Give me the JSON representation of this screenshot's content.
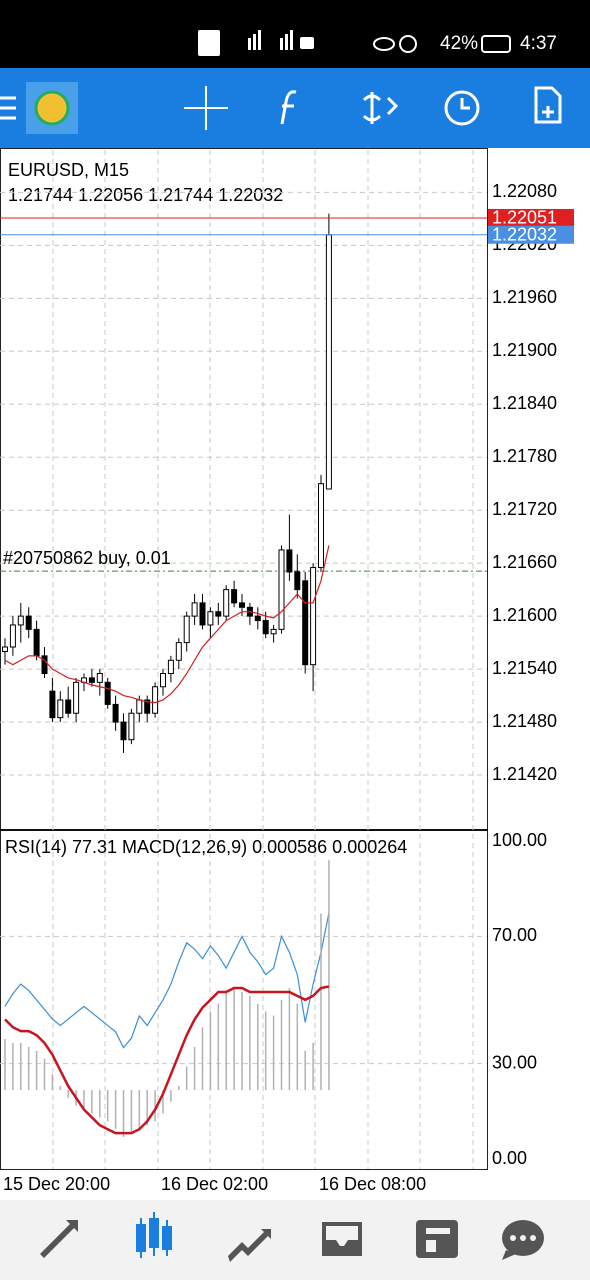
{
  "status_bar": {
    "battery": "42%",
    "time": "4:37"
  },
  "chart_data": [
    {
      "type": "candlestick",
      "title": "EURUSD, M15",
      "subtitle": "1.21744 1.22056 1.21744 1.22032",
      "categories": [
        "15 Dec 20:00",
        null,
        null,
        null,
        null,
        null,
        null,
        null,
        null,
        null,
        null,
        null,
        null,
        null,
        null,
        null,
        null,
        null,
        null,
        null,
        "16 Dec 02:00",
        null,
        null,
        null,
        null,
        null,
        null,
        null,
        null,
        null,
        null,
        null,
        null,
        null,
        null,
        null,
        null,
        null,
        null,
        null,
        "16 Dec 08:00",
        null
      ],
      "open": [
        1.2156,
        1.21565,
        1.2159,
        1.216,
        1.21585,
        1.21555,
        1.21515,
        1.21485,
        1.21505,
        1.2149,
        1.21525,
        1.2153,
        1.21525,
        1.21525,
        1.215,
        1.2148,
        1.2146,
        1.2149,
        1.21505,
        1.2149,
        1.2152,
        1.21535,
        1.2155,
        1.2157,
        1.216,
        1.21615,
        1.2159,
        1.21605,
        1.216,
        1.2163,
        1.21615,
        1.2161,
        1.216,
        1.21595,
        1.2158,
        1.21585,
        1.21675,
        1.2165,
        1.2164,
        1.21545,
        1.21655,
        1.21744
      ],
      "high": [
        1.21575,
        1.216,
        1.21615,
        1.2161,
        1.21595,
        1.21565,
        1.2153,
        1.21515,
        1.2152,
        1.2153,
        1.21535,
        1.2154,
        1.2154,
        1.2153,
        1.2151,
        1.2149,
        1.21495,
        1.2151,
        1.2151,
        1.21525,
        1.2154,
        1.21555,
        1.21575,
        1.21605,
        1.21625,
        1.21625,
        1.2161,
        1.21615,
        1.21635,
        1.2164,
        1.21625,
        1.21615,
        1.2161,
        1.21605,
        1.2159,
        1.2168,
        1.21715,
        1.2167,
        1.2165,
        1.2166,
        1.2176,
        1.22056
      ],
      "low": [
        1.21545,
        1.21555,
        1.2157,
        1.21575,
        1.2155,
        1.2153,
        1.2148,
        1.2148,
        1.21485,
        1.2148,
        1.21515,
        1.2152,
        1.2151,
        1.21495,
        1.2147,
        1.21445,
        1.21455,
        1.2148,
        1.2148,
        1.21485,
        1.2151,
        1.21525,
        1.2154,
        1.2156,
        1.2159,
        1.21585,
        1.21575,
        1.2159,
        1.21595,
        1.2161,
        1.216,
        1.2159,
        1.21585,
        1.21575,
        1.2157,
        1.2158,
        1.2164,
        1.2162,
        1.21535,
        1.21515,
        1.2165,
        1.21744
      ],
      "close": [
        1.21565,
        1.2159,
        1.216,
        1.21585,
        1.21555,
        1.21535,
        1.21485,
        1.21505,
        1.2149,
        1.21525,
        1.2153,
        1.21525,
        1.21535,
        1.215,
        1.2148,
        1.2146,
        1.2149,
        1.21505,
        1.2149,
        1.2152,
        1.21535,
        1.2155,
        1.2157,
        1.216,
        1.21615,
        1.2159,
        1.21605,
        1.216,
        1.2163,
        1.21615,
        1.2161,
        1.216,
        1.21595,
        1.2158,
        1.21585,
        1.21675,
        1.2165,
        1.2163,
        1.21545,
        1.21655,
        1.2175,
        1.22032
      ],
      "ma": {
        "color": "#d42020",
        "values": [
          1.2155,
          1.21545,
          1.2155,
          1.21555,
          1.21555,
          1.2155,
          1.2154,
          1.21535,
          1.2153,
          1.21528,
          1.21525,
          1.21522,
          1.2152,
          1.21518,
          1.21515,
          1.2151,
          1.21508,
          1.21505,
          1.21503,
          1.21502,
          1.21505,
          1.21512,
          1.21522,
          1.21535,
          1.2155,
          1.21565,
          1.21575,
          1.21585,
          1.21595,
          1.216,
          1.21605,
          1.21605,
          1.21603,
          1.216,
          1.21598,
          1.21605,
          1.21615,
          1.21625,
          1.21615,
          1.21615,
          1.2164,
          1.2168
        ]
      },
      "ylim": [
        1.2136,
        1.22128
      ],
      "yticks": [
        {
          "value": 1.2208,
          "label": "1.22080"
        },
        {
          "value": 1.2202,
          "label": "1.22020"
        },
        {
          "value": 1.2196,
          "label": "1.21960"
        },
        {
          "value": 1.219,
          "label": "1.21900"
        },
        {
          "value": 1.2184,
          "label": "1.21840"
        },
        {
          "value": 1.2178,
          "label": "1.21780"
        },
        {
          "value": 1.2172,
          "label": "1.21720"
        },
        {
          "value": 1.2166,
          "label": "1.21660"
        },
        {
          "value": 1.216,
          "label": "1.21600"
        },
        {
          "value": 1.2154,
          "label": "1.21540"
        },
        {
          "value": 1.2148,
          "label": "1.21480"
        },
        {
          "value": 1.2142,
          "label": "1.21420"
        }
      ],
      "grid": true,
      "ask": {
        "value": 1.22051,
        "color": "#e02020"
      },
      "bid": {
        "value": 1.22032,
        "color": "#4a90e2"
      },
      "order": {
        "label": "#20750862 buy, 0.01",
        "price": 1.21651,
        "color": "#2e8b2e"
      }
    },
    {
      "type": "line",
      "title": "RSI(14) 77.31 MACD(12,26,9) 0.000586 0.000264",
      "ylim": [
        0,
        100
      ],
      "yticks": [
        {
          "value": 100,
          "label": "100.00"
        },
        {
          "value": 70,
          "label": "70.00"
        },
        {
          "value": 30,
          "label": "30.00"
        },
        {
          "value": 0,
          "label": "0.00"
        }
      ],
      "y2lim": [
        -0.000176,
        0.000635
      ],
      "series": [
        {
          "kind": "line",
          "color": "#3a8fd6",
          "values": [
            48,
            52,
            55,
            53,
            50,
            47,
            44,
            42,
            44,
            46,
            48,
            46,
            44,
            42,
            40,
            35,
            38,
            45,
            42,
            46,
            50,
            55,
            62,
            68,
            66,
            63,
            67,
            64,
            60,
            65,
            70,
            65,
            62,
            58,
            60,
            70,
            65,
            58,
            43,
            55,
            65,
            77.31
          ]
        },
        {
          "kind": "histogram",
          "axis": "y2",
          "color": "#b0b0b0",
          "values": [
            0.00013,
            0.00012,
            0.00012,
            0.00011,
            0.0001,
            8e-05,
            4e-05,
            1e-05,
            -2e-05,
            -4e-05,
            -5e-05,
            -6e-05,
            -7e-05,
            -8e-05,
            -0.0001,
            -0.00012,
            -0.00011,
            -0.0001,
            -9e-05,
            -8e-05,
            -6e-05,
            -3e-05,
            1e-05,
            6e-05,
            0.00011,
            0.00016,
            0.0002,
            0.00022,
            0.00025,
            0.00026,
            0.00025,
            0.00024,
            0.00022,
            0.0002,
            0.00019,
            0.00023,
            0.00026,
            0.00022,
            0.0001,
            0.00012,
            0.00045,
            0.000586
          ]
        },
        {
          "kind": "line",
          "axis": "y2",
          "color": "#c8141e",
          "width": 2.5,
          "values": [
            0.00018,
            0.00016,
            0.00015,
            0.00015,
            0.00014,
            0.00012,
            9e-05,
            5e-05,
            1e-05,
            -2e-05,
            -5e-05,
            -7e-05,
            -9e-05,
            -0.0001,
            -0.00011,
            -0.00011,
            -0.00011,
            -0.0001,
            -8e-05,
            -5e-05,
            -1e-05,
            4e-05,
            9e-05,
            0.00014,
            0.00018,
            0.00021,
            0.00023,
            0.00025,
            0.00025,
            0.00026,
            0.00026,
            0.00025,
            0.00025,
            0.00025,
            0.00025,
            0.00025,
            0.00025,
            0.00024,
            0.00023,
            0.00024,
            0.00026,
            0.000264
          ]
        }
      ]
    }
  ]
}
